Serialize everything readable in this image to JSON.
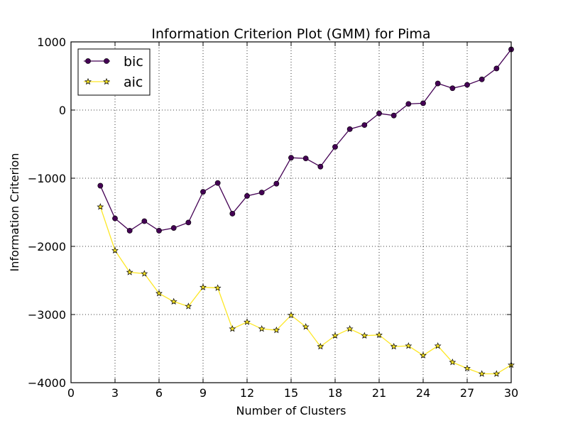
{
  "chart_data": {
    "type": "line",
    "title": "Information Criterion Plot (GMM) for Pima",
    "xlabel": "Number of Clusters",
    "ylabel": "Information Criterion",
    "xlim": [
      0,
      30
    ],
    "ylim": [
      -4000,
      1000
    ],
    "x_ticks": [
      0,
      3,
      6,
      9,
      12,
      15,
      18,
      21,
      24,
      27,
      30
    ],
    "y_ticks": [
      1000,
      0,
      -1000,
      -2000,
      -3000,
      -4000
    ],
    "y_tick_labels": [
      "1000",
      "0",
      "−1000",
      "−2000",
      "−3000",
      "−4000"
    ],
    "grid": true,
    "legend_position": "top-left",
    "x": [
      2,
      3,
      4,
      5,
      6,
      7,
      8,
      9,
      10,
      11,
      12,
      13,
      14,
      15,
      16,
      17,
      18,
      19,
      20,
      21,
      22,
      23,
      24,
      25,
      26,
      27,
      28,
      29,
      30
    ],
    "series": [
      {
        "name": "bic",
        "color": "#440154",
        "marker": "circle",
        "values": [
          -1110,
          -1590,
          -1770,
          -1630,
          -1770,
          -1730,
          -1650,
          -1200,
          -1070,
          -1520,
          -1260,
          -1210,
          -1080,
          -700,
          -710,
          -830,
          -540,
          -280,
          -220,
          -50,
          -80,
          90,
          100,
          390,
          320,
          370,
          450,
          610,
          890
        ]
      },
      {
        "name": "aic",
        "color": "#fde725",
        "marker": "star",
        "values": [
          -1420,
          -2060,
          -2380,
          -2400,
          -2690,
          -2810,
          -2880,
          -2600,
          -2610,
          -3210,
          -3110,
          -3210,
          -3230,
          -3010,
          -3180,
          -3470,
          -3310,
          -3210,
          -3310,
          -3300,
          -3470,
          -3460,
          -3600,
          -3460,
          -3700,
          -3790,
          -3870,
          -3870,
          -3740
        ]
      }
    ]
  }
}
